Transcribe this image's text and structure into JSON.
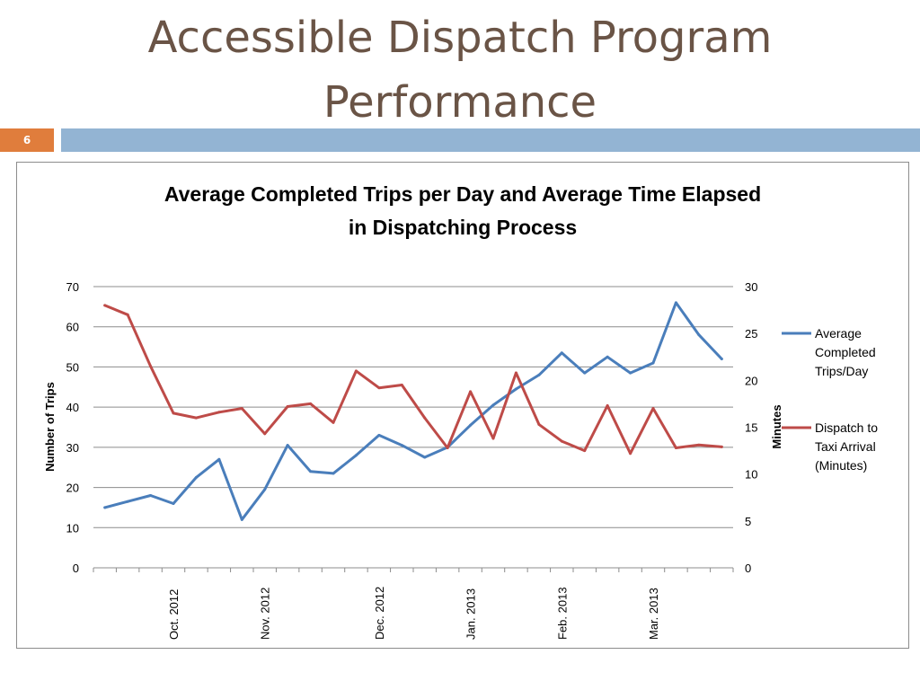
{
  "slide": {
    "title_line1": "Accessible Dispatch Program",
    "title_line2": "Performance",
    "number": "6"
  },
  "chart_data": {
    "type": "line",
    "title_line1": "Average Completed Trips per Day and Average Time Elapsed",
    "title_line2": "in Dispatching Process",
    "ylabel": "Number of Trips",
    "y2label": "Minutes",
    "ylim": [
      0,
      70
    ],
    "y2lim": [
      0,
      30
    ],
    "yticks": [
      0,
      10,
      20,
      30,
      40,
      50,
      60,
      70
    ],
    "y2ticks": [
      0,
      5,
      10,
      15,
      20,
      25,
      30
    ],
    "grid": true,
    "legend_position": "right",
    "month_labels": [
      {
        "label": "Oct. 2012",
        "index": 3
      },
      {
        "label": "Nov. 2012",
        "index": 7
      },
      {
        "label": "Dec. 2012",
        "index": 12
      },
      {
        "label": "Jan. 2013",
        "index": 16
      },
      {
        "label": "Feb. 2013",
        "index": 20
      },
      {
        "label": "Mar. 2013",
        "index": 24
      }
    ],
    "series": [
      {
        "name": "Average Completed Trips/Day",
        "legend_lines": [
          "Average",
          "Completed",
          "Trips/Day"
        ],
        "axis": "left",
        "color": "#4a7ebb",
        "values": [
          15,
          16.5,
          18,
          16,
          22.5,
          27,
          12,
          19.5,
          30.5,
          24,
          23.5,
          28,
          33,
          30.5,
          27.5,
          30,
          35.5,
          40.5,
          44.5,
          48,
          53.5,
          48.5,
          52.5,
          48.5,
          51,
          66,
          58,
          52
        ]
      },
      {
        "name": "Dispatch to Taxi Arrival (Minutes)",
        "legend_lines": [
          "Dispatch to",
          "Taxi Arrival",
          "(Minutes)"
        ],
        "axis": "right",
        "color": "#be4b48",
        "values": [
          28,
          27,
          21.5,
          16.5,
          16,
          16.6,
          17,
          14.3,
          17.2,
          17.5,
          15.5,
          21,
          19.2,
          19.5,
          16,
          12.8,
          18.8,
          13.8,
          20.8,
          15.3,
          13.5,
          12.5,
          17.3,
          12.2,
          17,
          12.8,
          13.1,
          12.9
        ]
      }
    ]
  }
}
